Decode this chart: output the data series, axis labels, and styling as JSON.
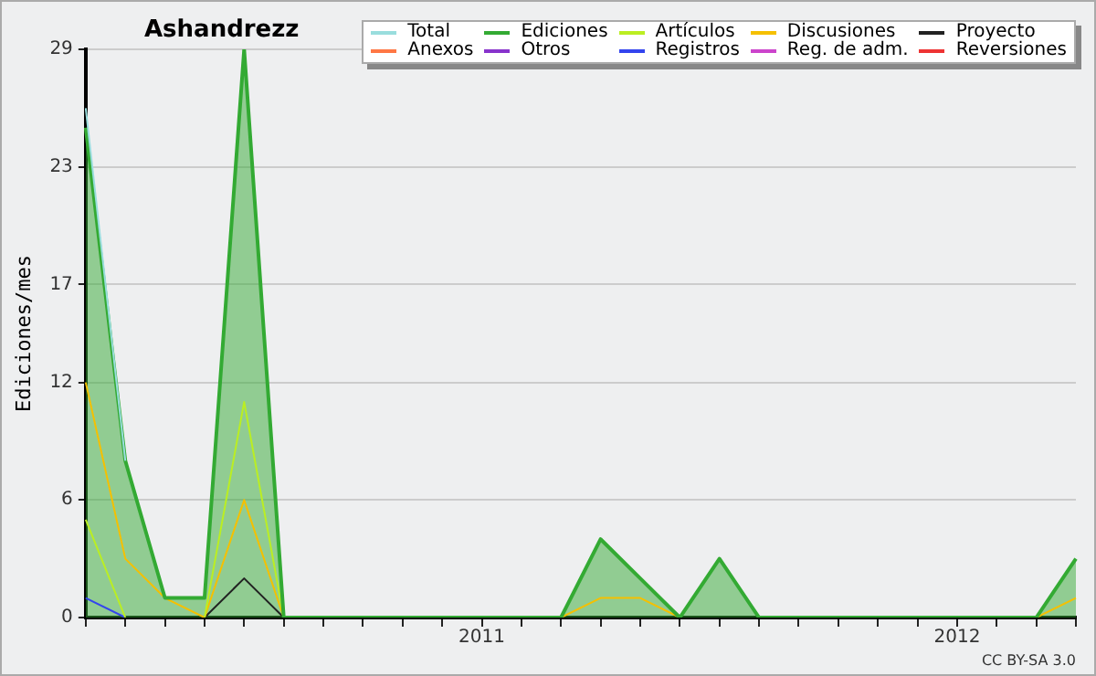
{
  "chart_data": {
    "type": "line",
    "title": "Ashandrezz",
    "ylabel": "Ediciones/mes",
    "categories": [
      null,
      null,
      null,
      null,
      null,
      null,
      null,
      null,
      null,
      null,
      "2011",
      null,
      null,
      null,
      null,
      null,
      null,
      null,
      null,
      null,
      null,
      null,
      "2012",
      null,
      null,
      null
    ],
    "series": [
      {
        "name": "Total",
        "color": "#99dddd",
        "values": [
          26,
          8,
          null,
          null,
          null,
          null,
          null,
          null,
          null,
          null,
          null,
          null,
          null,
          null,
          null,
          null,
          null,
          null,
          null,
          null,
          null,
          null,
          null,
          null,
          null,
          null
        ]
      },
      {
        "name": "Ediciones",
        "type": "area",
        "color": "#33aa33",
        "values": [
          25,
          8,
          1,
          1,
          29,
          0,
          0,
          0,
          0,
          0,
          0,
          0,
          0,
          4,
          2,
          0,
          3,
          0,
          0,
          0,
          0,
          0,
          0,
          0,
          0,
          3
        ]
      },
      {
        "name": "Artículos",
        "color": "#bbee22",
        "values": [
          5,
          0,
          null,
          0,
          11,
          0,
          null,
          null,
          null,
          null,
          null,
          null,
          null,
          null,
          null,
          null,
          null,
          null,
          null,
          null,
          null,
          null,
          null,
          null,
          null,
          null
        ]
      },
      {
        "name": "Discusiones",
        "color": "#f5c000",
        "values": [
          12,
          3,
          1,
          0,
          6,
          0,
          null,
          null,
          null,
          null,
          null,
          null,
          0,
          1,
          1,
          0,
          null,
          null,
          null,
          null,
          null,
          null,
          null,
          null,
          0,
          1
        ]
      },
      {
        "name": "Proyecto",
        "color": "#222222",
        "values": [
          null,
          null,
          null,
          0,
          2,
          0,
          null,
          null,
          null,
          null,
          null,
          null,
          null,
          null,
          null,
          null,
          null,
          null,
          null,
          null,
          null,
          null,
          null,
          null,
          null,
          null
        ]
      },
      {
        "name": "Anexos",
        "color": "#ff7744",
        "values": [
          null,
          null,
          null,
          null,
          null,
          null,
          null,
          null,
          null,
          null,
          null,
          null,
          null,
          null,
          null,
          null,
          null,
          null,
          null,
          null,
          null,
          null,
          null,
          null,
          null,
          null
        ]
      },
      {
        "name": "Otros",
        "color": "#8833cc",
        "values": [
          null,
          null,
          null,
          null,
          null,
          null,
          null,
          null,
          null,
          null,
          null,
          null,
          null,
          null,
          null,
          null,
          null,
          null,
          null,
          null,
          null,
          null,
          null,
          null,
          null,
          null
        ]
      },
      {
        "name": "Registros",
        "color": "#3344ee",
        "values": [
          1,
          0,
          null,
          null,
          null,
          null,
          null,
          null,
          null,
          null,
          null,
          null,
          null,
          null,
          null,
          null,
          null,
          null,
          null,
          null,
          null,
          null,
          null,
          null,
          null,
          null
        ]
      },
      {
        "name": "Reg. de adm.",
        "color": "#cc44cc",
        "values": [
          null,
          null,
          null,
          null,
          null,
          null,
          null,
          null,
          null,
          null,
          null,
          null,
          null,
          null,
          null,
          null,
          null,
          null,
          null,
          null,
          null,
          null,
          null,
          null,
          null,
          null
        ]
      },
      {
        "name": "Reversiones",
        "color": "#ee3333",
        "values": [
          null,
          null,
          null,
          null,
          null,
          null,
          null,
          null,
          null,
          null,
          null,
          null,
          null,
          null,
          null,
          null,
          null,
          null,
          null,
          null,
          null,
          null,
          null,
          null,
          null,
          null
        ]
      }
    ],
    "ylim": [
      0,
      29
    ],
    "yticks": [
      0,
      6,
      12,
      17,
      23,
      29
    ],
    "grid": "y",
    "legend": "top right",
    "marker": "none",
    "annotations": [
      "CC BY-SA 3.0"
    ]
  }
}
